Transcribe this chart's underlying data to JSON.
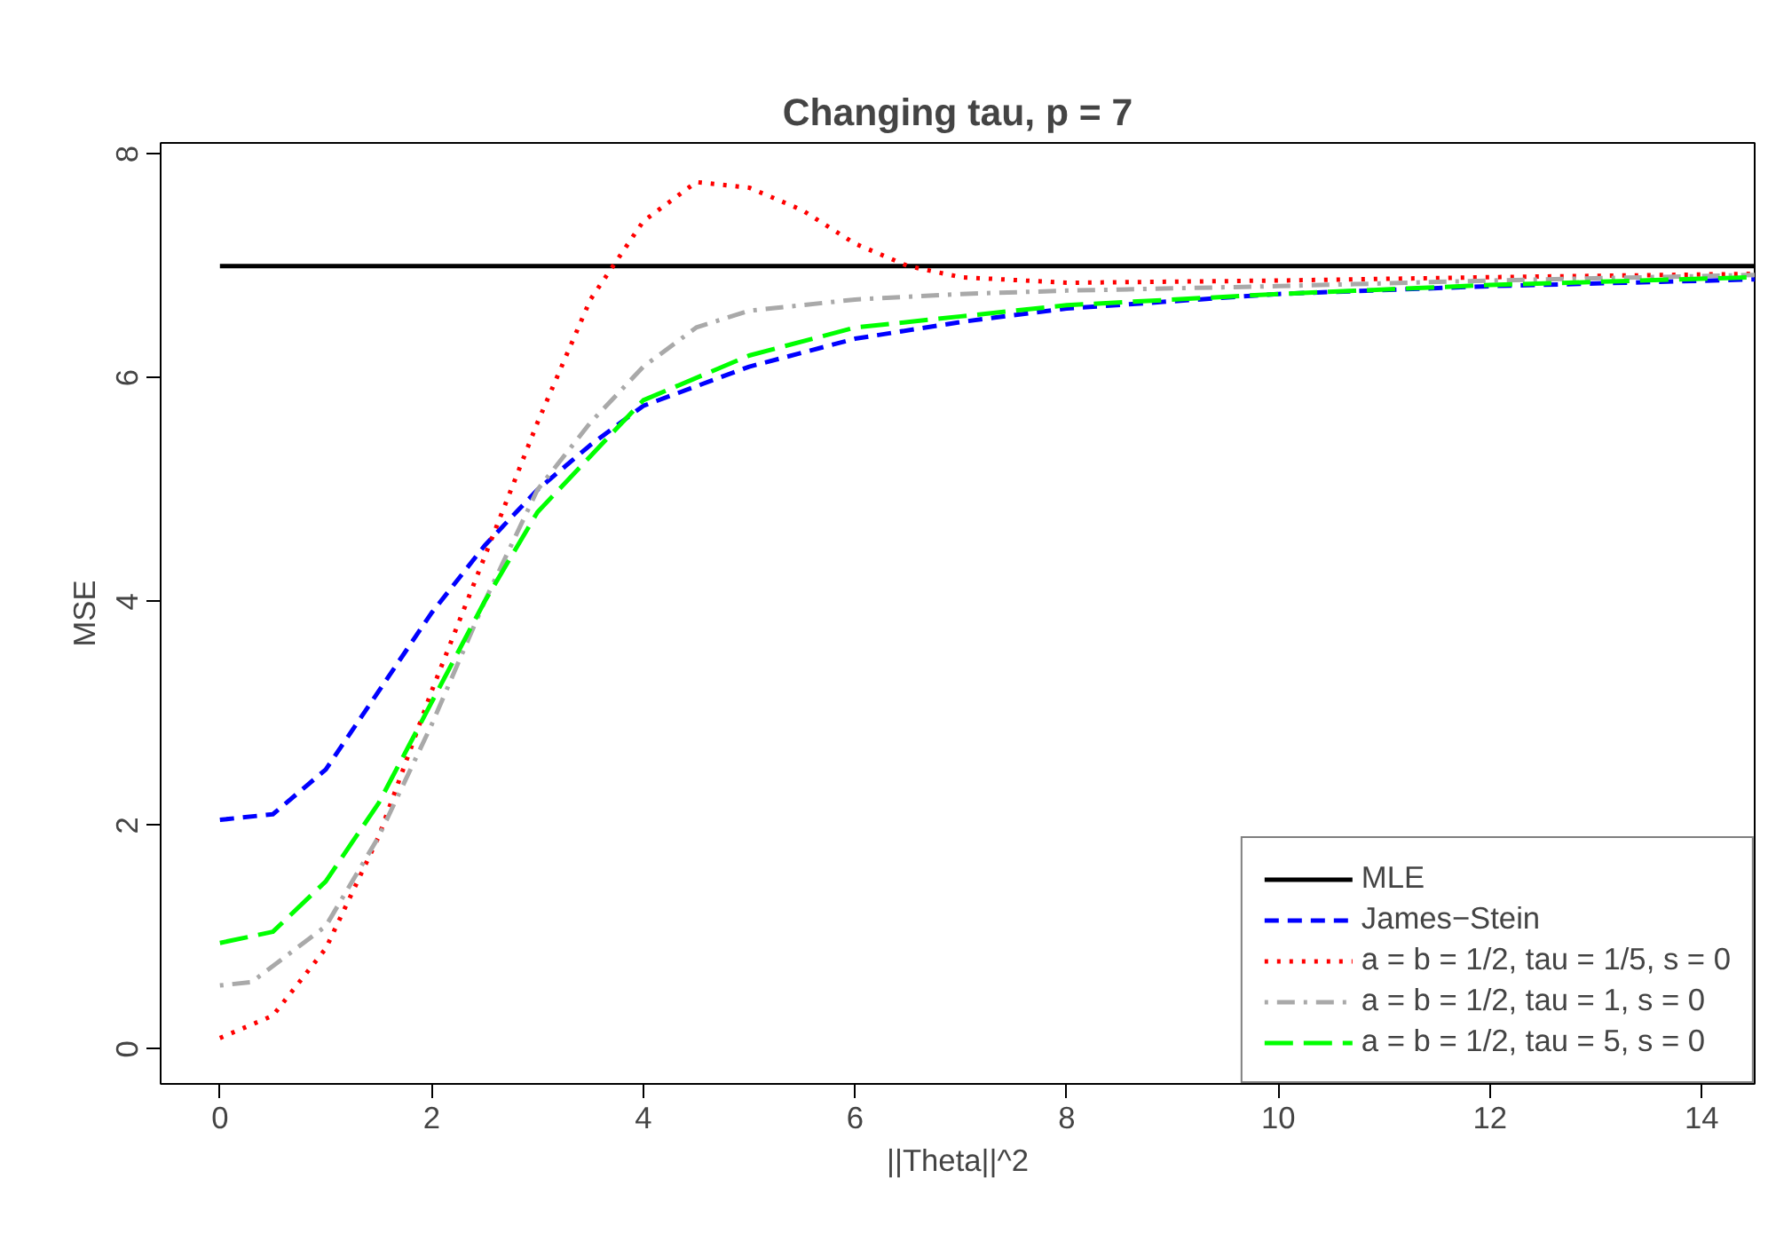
{
  "chart_data": {
    "type": "line",
    "title": "Changing tau, p = 7",
    "xlabel": "||Theta||^2",
    "ylabel": "MSE",
    "xlim": [
      -0.56,
      14.5
    ],
    "ylim": [
      -0.31,
      8.1
    ],
    "xticks": [
      0,
      2,
      4,
      6,
      8,
      10,
      12,
      14
    ],
    "yticks": [
      0,
      2,
      4,
      6,
      8
    ],
    "grid": false,
    "legend": "bottom right",
    "marker": "none",
    "series": [
      {
        "name": "MLE",
        "color": "#000000",
        "line_style": "solid",
        "x": [
          0,
          14.5
        ],
        "values": [
          7,
          7
        ]
      },
      {
        "name": "James−Stein",
        "color": "#0000ff",
        "line_style": "dashed",
        "x": [
          0,
          0.5,
          1,
          1.5,
          2,
          2.5,
          3,
          3.5,
          4,
          5,
          6,
          7,
          8,
          10,
          12,
          14.5
        ],
        "values": [
          2.05,
          2.1,
          2.5,
          3.2,
          3.9,
          4.5,
          5.0,
          5.4,
          5.75,
          6.1,
          6.35,
          6.5,
          6.62,
          6.75,
          6.82,
          6.88
        ]
      },
      {
        "name": "a = b = 1/2, tau = 1/5, s = 0",
        "color": "#ff0000",
        "line_style": "dotted",
        "x": [
          0,
          0.5,
          1,
          1.5,
          2,
          2.5,
          3,
          3.5,
          4,
          4.5,
          5,
          5.5,
          6,
          6.5,
          7,
          8,
          10,
          12,
          14.5
        ],
        "values": [
          0.1,
          0.3,
          0.9,
          1.9,
          3.2,
          4.4,
          5.6,
          6.7,
          7.4,
          7.75,
          7.7,
          7.5,
          7.2,
          7.0,
          6.9,
          6.85,
          6.87,
          6.9,
          6.93
        ]
      },
      {
        "name": "a = b = 1/2, tau = 1, s = 0",
        "color": "#a9a9a9",
        "line_style": "dashdot",
        "x": [
          0,
          0.3,
          1,
          1.5,
          2,
          2.5,
          3,
          3.5,
          4,
          4.5,
          5,
          6,
          7,
          8,
          10,
          12,
          14.5
        ],
        "values": [
          0.57,
          0.6,
          1.1,
          1.9,
          2.9,
          4.0,
          5.0,
          5.6,
          6.1,
          6.45,
          6.6,
          6.7,
          6.75,
          6.78,
          6.82,
          6.87,
          6.92
        ]
      },
      {
        "name": "a = b = 1/2, tau = 5, s = 0",
        "color": "#00ff00",
        "line_style": "longdash",
        "x": [
          0,
          0.5,
          1,
          1.5,
          2,
          2.5,
          3,
          3.5,
          4,
          5,
          6,
          7,
          8,
          10,
          12,
          14.5
        ],
        "values": [
          0.95,
          1.05,
          1.5,
          2.2,
          3.1,
          4.0,
          4.8,
          5.3,
          5.8,
          6.2,
          6.45,
          6.55,
          6.65,
          6.75,
          6.83,
          6.9
        ]
      }
    ]
  }
}
